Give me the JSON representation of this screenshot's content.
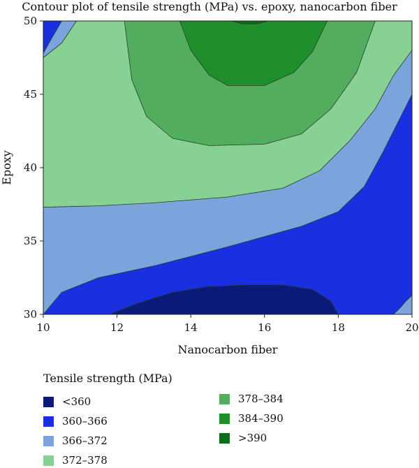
{
  "chart_data": {
    "type": "contour",
    "title": "Contour plot of tensile strength (MPa) vs. epoxy, nanocarbon fiber",
    "xlabel": "Nanocarbon fiber",
    "ylabel": "Epoxy",
    "xlim": [
      10,
      20
    ],
    "ylim": [
      30,
      50
    ],
    "x_ticks": [
      "10",
      "12",
      "14",
      "16",
      "18",
      "20"
    ],
    "y_ticks": [
      "30",
      "35",
      "40",
      "45",
      "50"
    ],
    "legend_title": "Tensile strength (MPa)",
    "legend_placement": "bottom",
    "levels": [
      {
        "label": "<360",
        "color": "#0b1a78"
      },
      {
        "label": "360–366",
        "color": "#1a2fe0"
      },
      {
        "label": "366–372",
        "color": "#7ba4dc"
      },
      {
        "label": "372–378",
        "color": "#86d193"
      },
      {
        "label": "378–384",
        "color": "#52ae5e"
      },
      {
        "label": "384–390",
        "color": "#1f8f2c"
      },
      {
        "label": ">390",
        "color": "#0b6d18"
      }
    ],
    "regions": [
      {
        "level": 2,
        "points": [
          [
            10,
            30
          ],
          [
            20,
            30
          ],
          [
            20,
            50
          ],
          [
            10,
            50
          ]
        ]
      },
      {
        "level": 1,
        "points": [
          [
            10,
            30
          ],
          [
            10.5,
            31.5
          ],
          [
            11.5,
            32.5
          ],
          [
            13,
            33.3
          ],
          [
            15,
            34.6
          ],
          [
            17,
            36
          ],
          [
            18,
            37
          ],
          [
            18.7,
            38.7
          ],
          [
            19.2,
            41
          ],
          [
            19.6,
            43
          ],
          [
            20,
            45
          ],
          [
            20,
            31.3
          ],
          [
            19.8,
            30.8
          ],
          [
            19.7,
            30.5
          ],
          [
            19.5,
            30
          ]
        ]
      },
      {
        "level": 1,
        "points": [
          [
            10,
            47.8
          ],
          [
            10.2,
            48.7
          ],
          [
            10.5,
            50
          ],
          [
            10,
            50
          ]
        ]
      },
      {
        "level": 0,
        "points": [
          [
            11.8,
            30
          ],
          [
            12.5,
            30.7
          ],
          [
            13.5,
            31.5
          ],
          [
            14.5,
            31.9
          ],
          [
            15.5,
            32
          ],
          [
            16.5,
            32
          ],
          [
            17.3,
            31.7
          ],
          [
            17.8,
            30.9
          ],
          [
            18,
            30
          ]
        ]
      },
      {
        "level": 3,
        "points": [
          [
            10,
            37.3
          ],
          [
            11.5,
            37.4
          ],
          [
            13,
            37.6
          ],
          [
            15,
            38
          ],
          [
            16.5,
            38.6
          ],
          [
            17.5,
            39.8
          ],
          [
            18.3,
            41.8
          ],
          [
            19,
            44
          ],
          [
            19.5,
            46.3
          ],
          [
            20,
            48
          ],
          [
            20,
            50
          ],
          [
            10.9,
            50
          ],
          [
            10.5,
            48.5
          ],
          [
            10,
            47.5
          ]
        ]
      },
      {
        "level": 4,
        "points": [
          [
            12.2,
            50
          ],
          [
            12.4,
            46
          ],
          [
            12.8,
            43.5
          ],
          [
            13.5,
            42
          ],
          [
            14.5,
            41.5
          ],
          [
            16,
            41.6
          ],
          [
            17,
            42.3
          ],
          [
            17.8,
            44
          ],
          [
            18.5,
            46.5
          ],
          [
            19,
            50
          ]
        ]
      },
      {
        "level": 5,
        "points": [
          [
            13.7,
            50
          ],
          [
            14,
            48
          ],
          [
            14.5,
            46.3
          ],
          [
            15,
            45.6
          ],
          [
            16,
            45.6
          ],
          [
            16.8,
            46.5
          ],
          [
            17.3,
            47.9
          ],
          [
            17.7,
            50
          ]
        ]
      },
      {
        "level": 6,
        "points": [
          [
            15.1,
            50
          ],
          [
            15.4,
            49.8
          ],
          [
            15.8,
            49.8
          ],
          [
            16.1,
            50
          ]
        ]
      }
    ]
  }
}
